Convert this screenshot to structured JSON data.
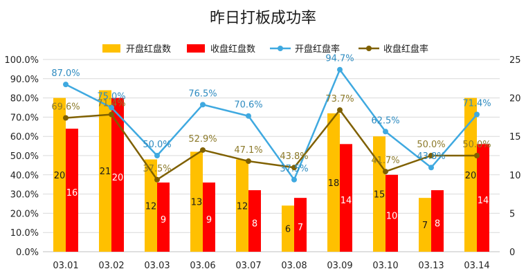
{
  "chart_data": {
    "type": "bar",
    "title": "昨日打板成功率",
    "categories": [
      "03.01",
      "03.02",
      "03.03",
      "03.06",
      "03.07",
      "03.08",
      "03.09",
      "03.10",
      "03.13",
      "03.14"
    ],
    "left_axis_ticks": [
      "0.0%",
      "10.0%",
      "20.0%",
      "30.0%",
      "40.0%",
      "50.0%",
      "60.0%",
      "70.0%",
      "80.0%",
      "90.0%",
      "100.0%"
    ],
    "right_axis_ticks": [
      "0",
      "5",
      "10",
      "15",
      "20",
      "25"
    ],
    "ylim_left": [
      0,
      100
    ],
    "ylim_right": [
      0,
      25
    ],
    "legend_position": "top",
    "series": [
      {
        "name": "开盘红盘数",
        "type": "bar",
        "axis": "right",
        "color": "#FFC000",
        "label_color": "#1a1a1a",
        "values": [
          20,
          21,
          12,
          13,
          12,
          6,
          18,
          15,
          7,
          20
        ],
        "labels": [
          "20",
          "21",
          "12",
          "13",
          "12",
          "6",
          "18",
          "15",
          "7",
          "20"
        ]
      },
      {
        "name": "收盘红盘数",
        "type": "bar",
        "axis": "right",
        "color": "#FF0000",
        "label_color": "#ffffff",
        "values": [
          16,
          20,
          9,
          9,
          8,
          7,
          14,
          10,
          8,
          14
        ],
        "labels": [
          "16",
          "20",
          "9",
          "9",
          "8",
          "7",
          "14",
          "10",
          "8",
          "14"
        ]
      },
      {
        "name": "开盘红盘率",
        "type": "line",
        "axis": "left",
        "color": "#3FA9E0",
        "label_color": "#2E8BC0",
        "values": [
          87.0,
          75.0,
          50.0,
          76.5,
          70.6,
          37.5,
          94.7,
          62.5,
          43.8,
          71.4
        ],
        "labels": [
          "87.0%",
          "75.0%",
          "50.0%",
          "76.5%",
          "70.6%",
          "37.5%",
          "94.7%",
          "62.5%",
          "43.8%",
          "71.4%"
        ]
      },
      {
        "name": "收盘红盘率",
        "type": "line",
        "axis": "left",
        "color": "#7F6000",
        "label_color": "#8C7A2A",
        "values": [
          69.6,
          71.4,
          37.5,
          52.9,
          47.1,
          43.8,
          73.7,
          41.7,
          50.0,
          50.0
        ],
        "labels": [
          "69.6%",
          "71.4%",
          "37.5%",
          "52.9%",
          "47.1%",
          "43.8%",
          "73.7%",
          "41.7%",
          "50.0%",
          "50.0%"
        ]
      }
    ]
  }
}
